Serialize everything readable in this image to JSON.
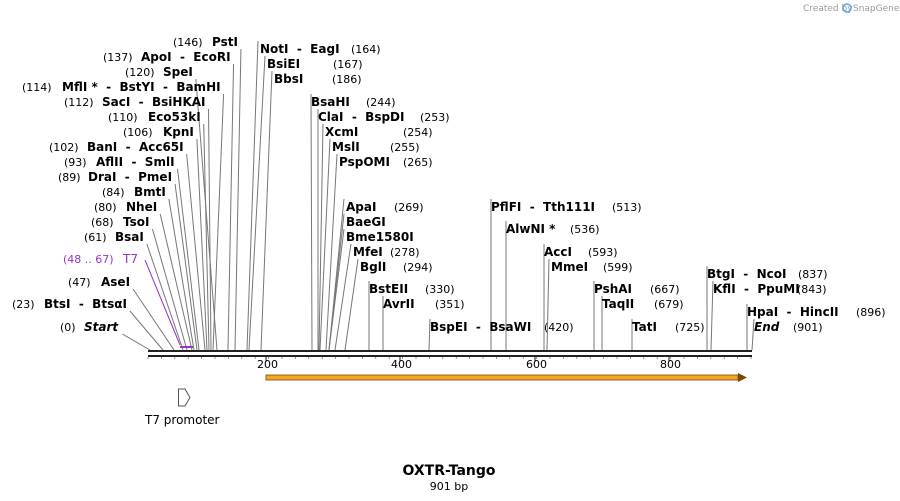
{
  "credit": {
    "text": "Created by",
    "brand": "SnapGene"
  },
  "map": {
    "title": "OXTR-Tango",
    "subtitle": "901 bp",
    "length": 901
  },
  "ruler": {
    "ticks": [
      "200",
      "400",
      "600",
      "800"
    ]
  },
  "colors": {
    "backbone": "#222222",
    "primer": "#9933cc",
    "orf_fill": "#f5a623",
    "orf_edge": "#7a4a00",
    "credit_icon": "#5aaad6"
  },
  "features": {
    "t7_primer": {
      "name": "T7",
      "range": "(48 .. 67)"
    },
    "t7_promoter": {
      "name": "T7 promoter",
      "icon": "promoter-arrow-icon"
    },
    "orf": {
      "icon": "orf-arrow-icon"
    }
  },
  "sites": [
    {
      "name": "Start",
      "pos": "(0)",
      "italic": true
    },
    {
      "name": "BtsI  -  BtsαI",
      "pos": "(23)"
    },
    {
      "name": "AseI",
      "pos": "(47)"
    },
    {
      "name": "BsaI",
      "pos": "(61)"
    },
    {
      "name": "TsoI",
      "pos": "(68)"
    },
    {
      "name": "NheI",
      "pos": "(80)"
    },
    {
      "name": "BmtI",
      "pos": "(84)"
    },
    {
      "name": "DraI  -  PmeI",
      "pos": "(89)"
    },
    {
      "name": "AflII  -  SmlI",
      "pos": "(93)"
    },
    {
      "name": "BanI  -  Acc65I",
      "pos": "(102)"
    },
    {
      "name": "KpnI",
      "pos": "(106)"
    },
    {
      "name": "Eco53kI",
      "pos": "(110)"
    },
    {
      "name": "SacI  -  BsiHKAI",
      "pos": "(112)"
    },
    {
      "name": "MflI *  -  BstYI  -  BamHI",
      "pos": "(114)"
    },
    {
      "name": "SpeI",
      "pos": "(120)"
    },
    {
      "name": "ApoI  -  EcoRI",
      "pos": "(137)"
    },
    {
      "name": "PstI",
      "pos": "(146)"
    },
    {
      "name": "NotI  -  EagI",
      "pos": "(164)"
    },
    {
      "name": "BsiEI",
      "pos": "(167)"
    },
    {
      "name": "BbsI",
      "pos": "(186)"
    },
    {
      "name": "BsaHI",
      "pos": "(244)"
    },
    {
      "name": "ClaI  -  BspDI",
      "pos": "(253)"
    },
    {
      "name": "XcmI",
      "pos": "(254)"
    },
    {
      "name": "MslI",
      "pos": "(255)"
    },
    {
      "name": "PspOMI",
      "pos": "(265)"
    },
    {
      "name": "ApaI",
      "pos": "(269)"
    },
    {
      "name": "BaeGI",
      "pos": ""
    },
    {
      "name": "Bme1580I",
      "pos": ""
    },
    {
      "name": "MfeI",
      "pos": "(278)"
    },
    {
      "name": "BglI",
      "pos": "(294)"
    },
    {
      "name": "BstEII",
      "pos": "(330)"
    },
    {
      "name": "AvrII",
      "pos": "(351)"
    },
    {
      "name": "BspEI  -  BsaWI",
      "pos": "(420)"
    },
    {
      "name": "PflFI  -  Tth111I",
      "pos": "(513)"
    },
    {
      "name": "AlwNI *",
      "pos": "(536)"
    },
    {
      "name": "AccI",
      "pos": "(593)"
    },
    {
      "name": "MmeI",
      "pos": "(599)"
    },
    {
      "name": "PshAI",
      "pos": "(667)"
    },
    {
      "name": "TaqII",
      "pos": "(679)"
    },
    {
      "name": "TatI",
      "pos": "(725)"
    },
    {
      "name": "BtgI  -  NcoI",
      "pos": "(837)"
    },
    {
      "name": "KflI  -  PpuMI",
      "pos": "(843)"
    },
    {
      "name": "HpaI  -  HincII",
      "pos": "(896)"
    },
    {
      "name": "End",
      "pos": "(901)",
      "italic": true
    }
  ]
}
